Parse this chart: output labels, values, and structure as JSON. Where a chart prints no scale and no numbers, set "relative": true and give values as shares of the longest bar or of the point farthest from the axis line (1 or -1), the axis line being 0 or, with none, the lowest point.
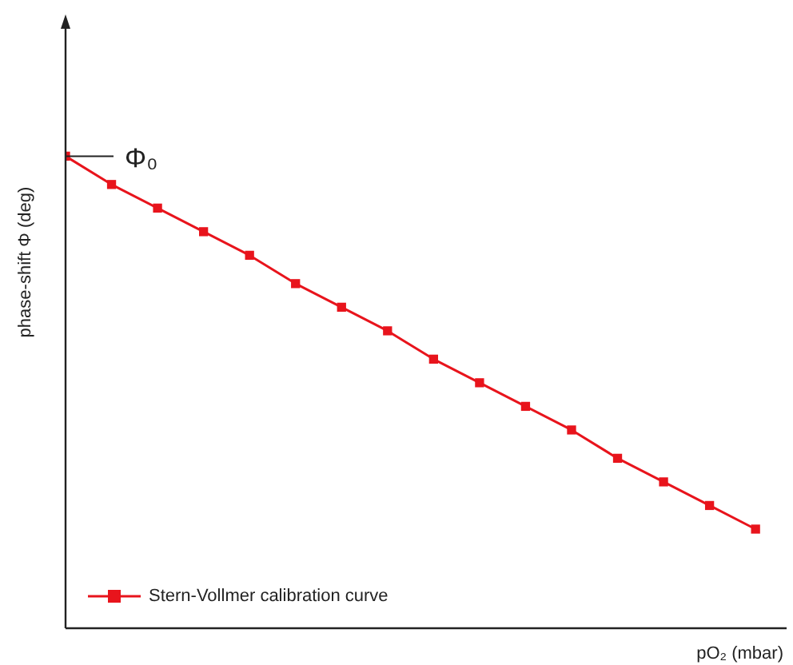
{
  "chart_data": {
    "type": "line",
    "relative": true,
    "xlabel": "pO₂ (mbar)",
    "ylabel": "phase-shift Φ (deg)",
    "categories": [
      null,
      null,
      null,
      null,
      null,
      null,
      null,
      null,
      null,
      null,
      null,
      null,
      null,
      null,
      null,
      null
    ],
    "series": [
      {
        "name": "Stern-Vollmer calibration curve",
        "color": "#e8141c",
        "values": [
          1,
          0.94,
          0.89,
          0.84,
          0.79,
          0.73,
          0.68,
          0.63,
          0.57,
          0.52,
          0.47,
          0.42,
          0.36,
          0.31,
          0.26,
          0.21
        ]
      }
    ],
    "annotations": [
      "Φ₀"
    ],
    "marker": "square",
    "line_style": "solid",
    "legend": "bottom left",
    "grid": false
  }
}
